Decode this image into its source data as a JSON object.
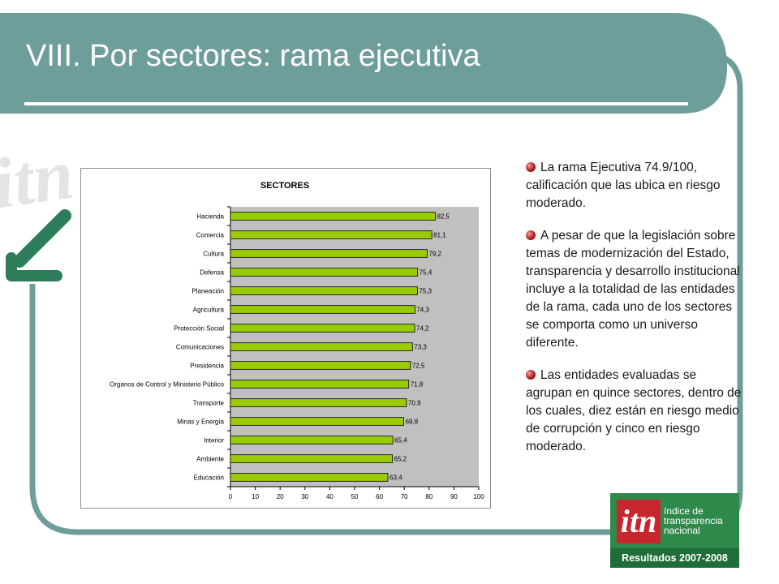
{
  "slide": {
    "title": "VIII. Por sectores: rama ejecutiva",
    "colors": {
      "frame": "#6e9e9a",
      "bar": "#99cc00",
      "plot_bg": "#c0c0c0",
      "logo_green": "#2e8a4b",
      "logo_red": "#c8262e"
    }
  },
  "bullets": [
    "La rama Ejecutiva 74.9/100, calificación que las ubica en riesgo moderado.",
    "A pesar de que la legislación sobre temas de modernización del Estado, transparencia y desarrollo institucional incluye a la totalidad de las entidades de la rama, cada uno de los sectores se comporta como un universo diferente.",
    "Las entidades evaluadas se agrupan en quince sectores, dentro de los cuales, diez están en riesgo medio de corrupción y cinco en riesgo moderado."
  ],
  "logo": {
    "mark": "itn",
    "name": "índice de\ntransparencia\nnacional",
    "footer": "Resultados 2007-2008",
    "watermark": "itn",
    "arrow_icon": "arrow-down-left-icon"
  },
  "chart_data": {
    "type": "bar",
    "orientation": "horizontal",
    "title": "SECTORES",
    "categories": [
      "Hacienda",
      "Comercia",
      "Cultura",
      "Defensa",
      "Planeación",
      "Agricultura",
      "Protección Social",
      "Comunicaciones",
      "Presidencia",
      "Organos de Control y Ministerio Público",
      "Transporte",
      "Minas y Energía",
      "Interior",
      "Ambiente",
      "Educación"
    ],
    "values": [
      82.5,
      81.1,
      79.2,
      75.4,
      75.3,
      74.3,
      74.2,
      73.3,
      72.5,
      71.8,
      70.9,
      69.8,
      65.4,
      65.2,
      63.4
    ],
    "data_labels": [
      "82,5",
      "81,1",
      "79,2",
      "75,4",
      "75,3",
      "74,3",
      "74,2",
      "73,3",
      "72,5",
      "71,8",
      "70,9",
      "69,8",
      "65,4",
      "65,2",
      "63,4"
    ],
    "xlim": [
      0,
      100
    ],
    "xticks": [
      0,
      10,
      20,
      30,
      40,
      50,
      60,
      70,
      80,
      90,
      100
    ],
    "grid": false,
    "legend": "none"
  }
}
